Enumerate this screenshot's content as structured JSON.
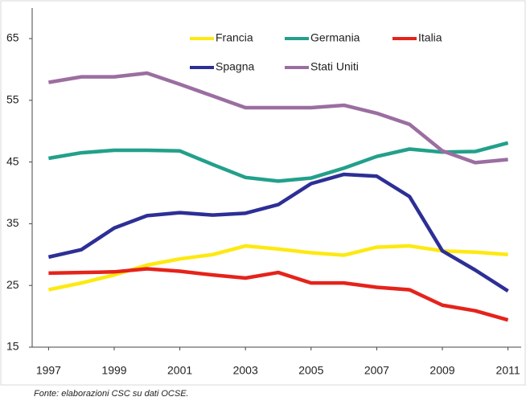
{
  "chart_data": {
    "type": "line",
    "x": [
      1997,
      1998,
      1999,
      2000,
      2001,
      2002,
      2003,
      2004,
      2005,
      2006,
      2007,
      2008,
      2009,
      2010,
      2011
    ],
    "series": [
      {
        "name": "Francia",
        "color": "#fde910",
        "values": [
          24.3,
          25.4,
          26.7,
          28.3,
          29.3,
          30,
          31.4,
          30.9,
          30.3,
          29.9,
          31.2,
          31.4,
          30.6,
          30.4,
          30
        ]
      },
      {
        "name": "Germania",
        "color": "#22a08a",
        "values": [
          45.6,
          46.5,
          46.9,
          46.9,
          46.8,
          44.6,
          42.5,
          41.9,
          42.4,
          44,
          45.9,
          47.1,
          46.6,
          46.7,
          48.1
        ]
      },
      {
        "name": "Italia",
        "color": "#e5231b",
        "values": [
          27,
          27.1,
          27.2,
          27.7,
          27.3,
          26.7,
          26.2,
          27.1,
          25.4,
          25.4,
          24.7,
          24.3,
          21.8,
          20.9,
          19.4
        ]
      },
      {
        "name": "Spagna",
        "color": "#2d2f96",
        "values": [
          29.6,
          30.8,
          34.3,
          36.3,
          36.8,
          36.4,
          36.7,
          38.1,
          41.5,
          43,
          42.7,
          39.4,
          30.6,
          27.5,
          24.1
        ]
      },
      {
        "name": "Stati Uniti",
        "color": "#9b6ea1",
        "values": [
          57.9,
          58.8,
          58.8,
          59.4,
          57.6,
          55.7,
          53.8,
          53.8,
          53.8,
          54.2,
          52.9,
          51.1,
          46.8,
          44.9,
          45.4
        ]
      }
    ],
    "xlim": [
      1996.5,
      2011.5
    ],
    "xticks": [
      1997,
      1999,
      2001,
      2003,
      2005,
      2007,
      2009,
      2011
    ],
    "ylim": [
      15,
      65
    ],
    "yticks": [
      15,
      25,
      35,
      45,
      55,
      65
    ],
    "grid": false,
    "legend": "top",
    "source": "Fonte: elaborazioni CSC su dati OCSE."
  }
}
